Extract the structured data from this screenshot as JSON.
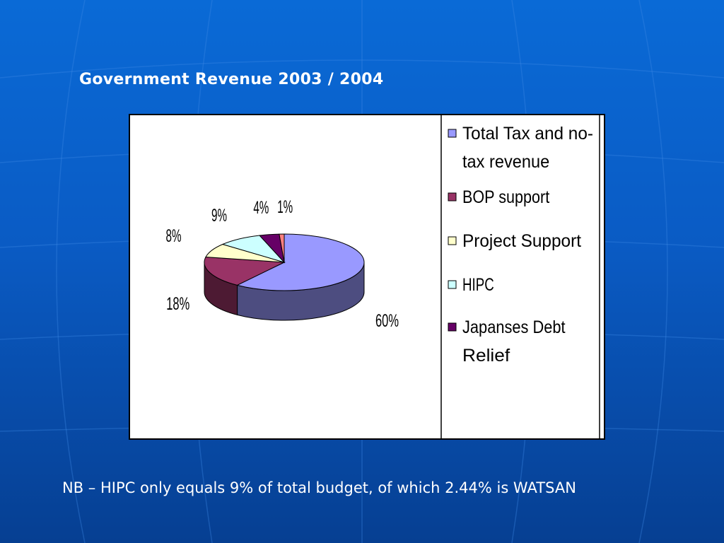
{
  "slide": {
    "title": "Government Revenue 2003 / 2004",
    "note": "NB – HIPC only equals 9% of total budget, of which 2.44% is WATSAN"
  },
  "chart_data": {
    "type": "pie",
    "title": "Government Revenue 2003 / 2004",
    "three_d": true,
    "legend_position": "right",
    "series": [
      {
        "name": "Total Tax and no-tax revenue",
        "legend_lines": [
          "Total Tax and no-",
          "tax revenue"
        ],
        "value": 60,
        "label": "60%",
        "color": "#9999ff",
        "side_color": "#4d4d80"
      },
      {
        "name": "BOP support",
        "legend_lines": [
          "BOP support"
        ],
        "value": 18,
        "label": "18%",
        "color": "#993366",
        "side_color": "#4d1a33"
      },
      {
        "name": "Project Support",
        "legend_lines": [
          "Project Support"
        ],
        "value": 8,
        "label": "8%",
        "color": "#ffffcc",
        "side_color": "#808066"
      },
      {
        "name": "HIPC",
        "legend_lines": [
          "HIPC"
        ],
        "value": 9,
        "label": "9%",
        "color": "#ccffff",
        "side_color": "#668080"
      },
      {
        "name": "Japanses Debt Relief",
        "legend_lines": [
          "Japanses Debt",
          "Relief"
        ],
        "value": 4,
        "label": "4%",
        "color": "#660066",
        "side_color": "#330033"
      },
      {
        "name": "",
        "legend_lines": [],
        "value": 1,
        "label": "1%",
        "color": "#ff8080",
        "side_color": "#804040"
      }
    ]
  }
}
